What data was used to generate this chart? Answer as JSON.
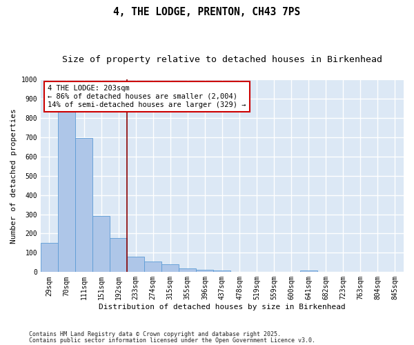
{
  "title1": "4, THE LODGE, PRENTON, CH43 7PS",
  "title2": "Size of property relative to detached houses in Birkenhead",
  "xlabel": "Distribution of detached houses by size in Birkenhead",
  "ylabel": "Number of detached properties",
  "categories": [
    "29sqm",
    "70sqm",
    "111sqm",
    "151sqm",
    "192sqm",
    "233sqm",
    "274sqm",
    "315sqm",
    "355sqm",
    "396sqm",
    "437sqm",
    "478sqm",
    "519sqm",
    "559sqm",
    "600sqm",
    "641sqm",
    "682sqm",
    "723sqm",
    "763sqm",
    "804sqm",
    "845sqm"
  ],
  "values": [
    150,
    830,
    695,
    290,
    178,
    80,
    55,
    42,
    20,
    12,
    10,
    0,
    0,
    0,
    0,
    10,
    0,
    0,
    0,
    0,
    0
  ],
  "bar_color": "#aec6e8",
  "bar_edge_color": "#5b9bd5",
  "background_color": "#dce8f5",
  "grid_color": "#ffffff",
  "vline_x_index": 4.5,
  "vline_color": "#8b0000",
  "annotation_text": "4 THE LODGE: 203sqm\n← 86% of detached houses are smaller (2,004)\n14% of semi-detached houses are larger (329) →",
  "annotation_box_color": "#cc0000",
  "ylim": [
    0,
    1000
  ],
  "yticks": [
    0,
    100,
    200,
    300,
    400,
    500,
    600,
    700,
    800,
    900,
    1000
  ],
  "footer1": "Contains HM Land Registry data © Crown copyright and database right 2025.",
  "footer2": "Contains public sector information licensed under the Open Government Licence v3.0.",
  "title1_fontsize": 10.5,
  "title2_fontsize": 9.5,
  "axis_fontsize": 8,
  "tick_fontsize": 7,
  "footer_fontsize": 6,
  "annot_fontsize": 7.5
}
